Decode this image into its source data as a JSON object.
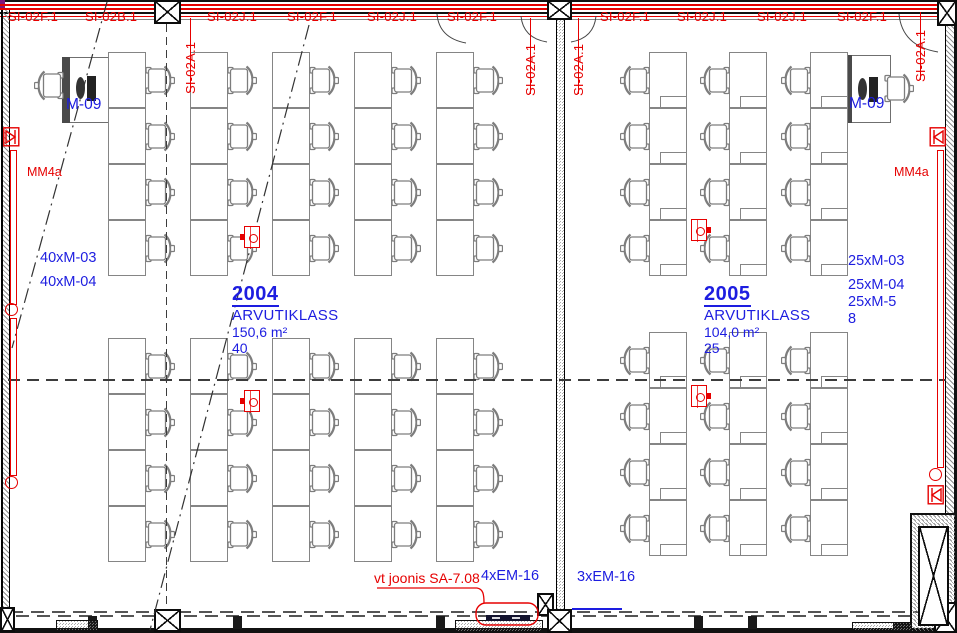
{
  "compartment": {
    "horizontal_labels": [
      "SI-02F.1",
      "SI-02B.1",
      "SI-02J.1",
      "SI-02F.1",
      "SI-02J.1",
      "SI-02F.1",
      "SI-02F.1",
      "SI-02J.1",
      "SI-02J.1",
      "SI-02F.1"
    ],
    "vertical_labels": [
      "SI-02A.1",
      "SI-02A.1",
      "SI-02A.1",
      "SI-02A.1"
    ]
  },
  "rooms": [
    {
      "number": "2004",
      "name": "ARVUTIKLASS",
      "area": "150,6 m²",
      "capacity": "40",
      "equipment_lines": [
        "40xM-03",
        "40xM-04"
      ],
      "teacher_station": "M-09",
      "wall_label": "MM4a",
      "em_label": "4xEM-16"
    },
    {
      "number": "2005",
      "name": "ARVUTIKLASS",
      "area": "104,0 m²",
      "capacity": "25",
      "equipment_lines": [
        "25xM-03",
        "25xM-04",
        "25xM-5",
        "8"
      ],
      "teacher_station": "M-09",
      "wall_label": "MM4a",
      "em_label": "3xEM-16"
    }
  ],
  "notes": {
    "reference": "vt joonis SA-7.08"
  },
  "colors": {
    "red": "#e60000",
    "blue": "#1d1de0",
    "line_gray": "#858585",
    "wall_black": "#0c0c0c"
  }
}
